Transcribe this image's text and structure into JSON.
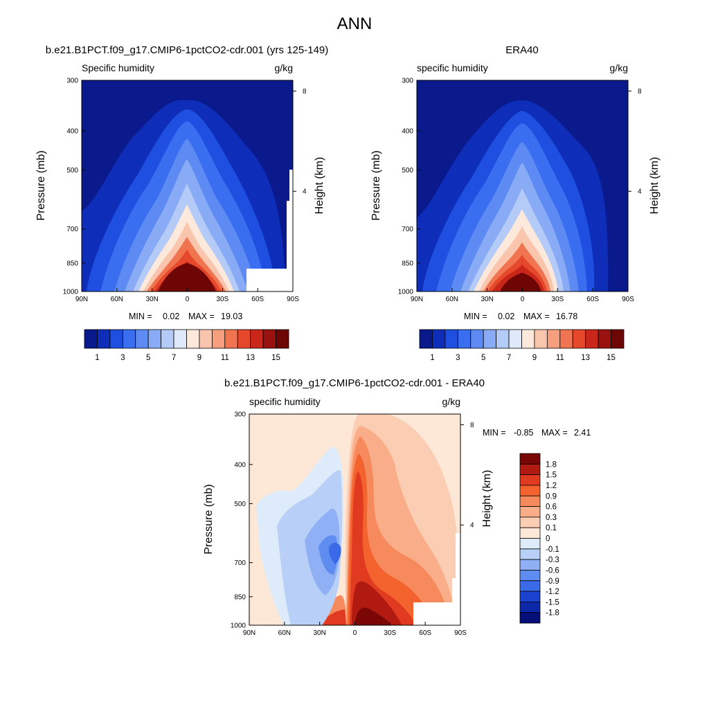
{
  "figure": {
    "title": "ANN"
  },
  "chart_data": [
    {
      "type": "heatmap",
      "title": "b.e21.B1PCT.f09_g17.CMIP6-1pctCO2-cdr.001 (yrs 125-149)",
      "left_label": "Specific humidity",
      "right_label": "g/kg",
      "ylabel": "Pressure (mb)",
      "ylabel_right": "Height (km)",
      "x_ticks": [
        "90N",
        "60N",
        "30N",
        "0",
        "30S",
        "60S",
        "90S"
      ],
      "y_ticks": [
        "300",
        "400",
        "500",
        "700",
        "850",
        "1000"
      ],
      "height_ticks": [
        "8",
        "4"
      ],
      "stats": {
        "min_label": "MIN =",
        "min": "0.02",
        "max_label": "MAX =",
        "max": "19.03"
      },
      "colorbar_labels": [
        "1",
        "3",
        "5",
        "7",
        "9",
        "11",
        "13",
        "15"
      ],
      "levels": [
        1,
        2,
        3,
        4,
        5,
        6,
        7,
        8,
        9,
        10,
        11,
        12,
        13,
        14,
        15
      ],
      "colors": [
        "#0a1a8c",
        "#0e2db8",
        "#1f4fe0",
        "#3a6ef0",
        "#5d8bf3",
        "#89abf5",
        "#b5cbf7",
        "#dfe9fa",
        "#fde9dc",
        "#f9c5ad",
        "#f59f7e",
        "#ef744f",
        "#e5482a",
        "#c9271a",
        "#9a1210",
        "#6e0606"
      ]
    },
    {
      "type": "heatmap",
      "title": "ERA40",
      "left_label": "specific humidity",
      "right_label": "g/kg",
      "ylabel": "Pressure (mb)",
      "ylabel_right": "Height (km)",
      "x_ticks": [
        "90N",
        "60N",
        "30N",
        "0",
        "30S",
        "60S",
        "90S"
      ],
      "y_ticks": [
        "300",
        "400",
        "500",
        "700",
        "850",
        "1000"
      ],
      "height_ticks": [
        "8",
        "4"
      ],
      "stats": {
        "min_label": "MIN =",
        "min": "0.02",
        "max_label": "MAX =",
        "max": "16.78"
      },
      "colorbar_labels": [
        "1",
        "3",
        "5",
        "7",
        "9",
        "11",
        "13",
        "15"
      ],
      "levels": [
        1,
        2,
        3,
        4,
        5,
        6,
        7,
        8,
        9,
        10,
        11,
        12,
        13,
        14,
        15
      ],
      "colors": [
        "#0a1a8c",
        "#0e2db8",
        "#1f4fe0",
        "#3a6ef0",
        "#5d8bf3",
        "#89abf5",
        "#b5cbf7",
        "#dfe9fa",
        "#fde9dc",
        "#f9c5ad",
        "#f59f7e",
        "#ef744f",
        "#e5482a",
        "#c9271a",
        "#9a1210",
        "#6e0606"
      ]
    },
    {
      "type": "heatmap",
      "title": "b.e21.B1PCT.f09_g17.CMIP6-1pctCO2-cdr.001 - ERA40",
      "left_label": "specific humidity",
      "right_label": "g/kg",
      "ylabel": "Pressure (mb)",
      "ylabel_right": "Height (km)",
      "x_ticks": [
        "90N",
        "60N",
        "30N",
        "0",
        "30S",
        "60S",
        "90S"
      ],
      "y_ticks": [
        "300",
        "400",
        "500",
        "700",
        "850",
        "1000"
      ],
      "height_ticks": [
        "8",
        "4"
      ],
      "stats": {
        "min_label": "MIN =",
        "min": "-0.85",
        "max_label": "MAX =",
        "max": "2.41"
      },
      "colorbar_labels": [
        "1.8",
        "1.5",
        "1.2",
        "0.9",
        "0.6",
        "0.3",
        "0.1",
        "0",
        "-0.1",
        "-0.3",
        "-0.6",
        "-0.9",
        "-1.2",
        "-1.5",
        "-1.8"
      ],
      "colors": [
        "#7a0606",
        "#b01a10",
        "#e03a20",
        "#f4622e",
        "#f78a5c",
        "#f9ad88",
        "#fbcdb3",
        "#fde8d8",
        "#deebfa",
        "#b8cff7",
        "#8fb0f4",
        "#5f8cf0",
        "#3a6ae8",
        "#1b43d2",
        "#0c27a8",
        "#060e7a"
      ]
    }
  ]
}
